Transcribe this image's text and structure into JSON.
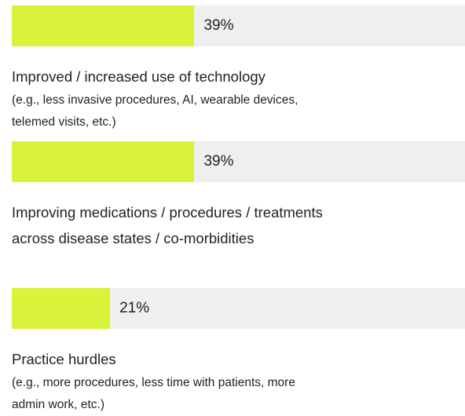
{
  "chart_data": {
    "type": "bar",
    "orientation": "horizontal",
    "categories": [
      [
        "Improved / increased use of technology"
      ],
      [
        "Improving medications / procedures / treatments",
        "across disease states / co-morbidities"
      ],
      [
        "Practice hurdles"
      ]
    ],
    "notes": [
      [
        "(e.g., less invasive procedures, AI, wearable devices,",
        "telemed visits, etc.)"
      ],
      [],
      [
        "(e.g., more procedures, less time with patients, more",
        "admin work, etc.)"
      ]
    ],
    "values": [
      39,
      39,
      21
    ],
    "value_labels": [
      "39%",
      "39%",
      "21%"
    ],
    "color": "#d9f23a",
    "xlim": [
      0,
      100
    ]
  }
}
